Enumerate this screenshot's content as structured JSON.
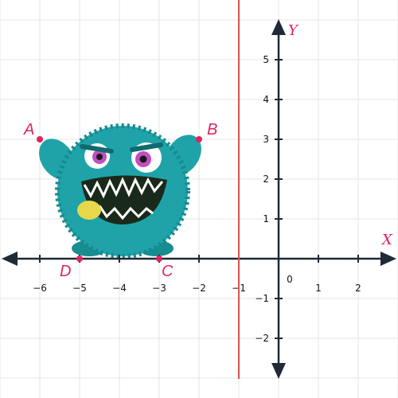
{
  "chart_data": {
    "type": "scatter",
    "x_axis_label": "X",
    "y_axis_label": "Y",
    "origin_label": "0",
    "x_tick_labels": [
      "−6",
      "−5",
      "−4",
      "−3",
      "−2",
      "−1",
      "1",
      "2"
    ],
    "y_tick_labels": [
      "5",
      "4",
      "3",
      "2",
      "1",
      "−1",
      "−2"
    ],
    "x_ticks": [
      -6,
      -5,
      -4,
      -3,
      -2,
      -1,
      1,
      2
    ],
    "y_ticks": [
      5,
      4,
      3,
      2,
      1,
      -1,
      -2
    ],
    "x_range": [
      -7,
      3
    ],
    "y_range": [
      -3,
      6
    ],
    "grid": true,
    "vertical_line": {
      "x": -1,
      "color": "#d9534f"
    },
    "points": [
      {
        "label": "A",
        "x": -6,
        "y": 3
      },
      {
        "label": "B",
        "x": -2,
        "y": 3
      },
      {
        "label": "C",
        "x": -3,
        "y": 0
      },
      {
        "label": "D",
        "x": -5,
        "y": 0
      }
    ],
    "point_color": "#e0245e",
    "axis_color": "#1f2a36"
  },
  "illustration": {
    "icon": "furry-teal-monster-icon",
    "body_color": "#1fa3a8",
    "eye_color": "#c04fc0",
    "tongue_color": "#e6d84a"
  }
}
